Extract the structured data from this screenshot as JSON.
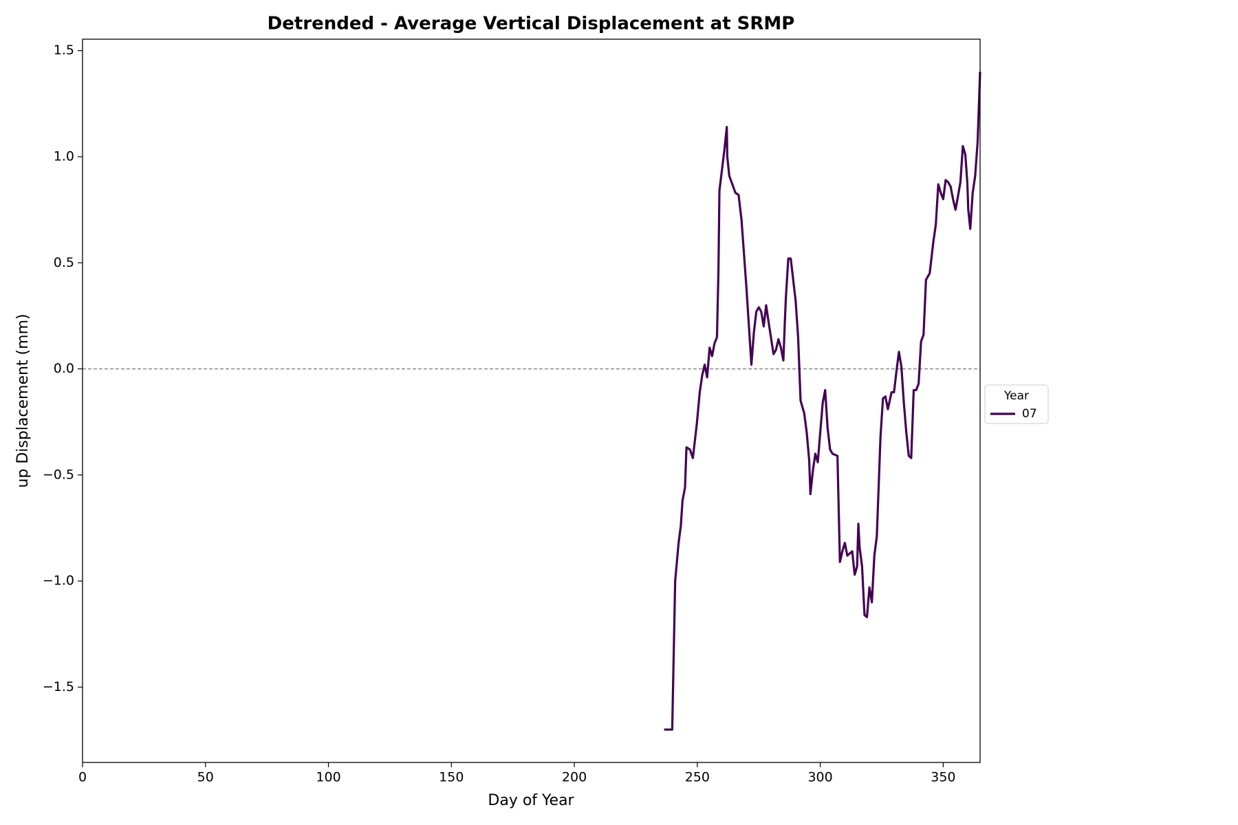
{
  "chart_data": {
    "type": "line",
    "title": "Detrended - Average Vertical Displacement at SRMP",
    "x_label": "Day of Year",
    "y_label": "up Displacement  (mm)",
    "x": [
      236.5,
      239.8,
      241,
      242.4,
      243.3,
      244,
      245,
      245.6,
      247,
      248.2,
      249.8,
      251,
      252,
      253,
      254,
      255,
      256,
      257,
      258,
      258.6,
      259,
      261,
      262,
      262.2,
      263,
      265.5,
      266.8,
      268,
      270,
      272,
      273,
      274,
      275,
      276,
      277,
      278,
      279,
      281,
      282,
      283,
      284,
      285,
      285.6,
      286,
      287,
      288,
      290,
      291,
      292,
      293.5,
      294.5,
      295.5,
      296,
      297,
      298,
      299,
      300,
      301,
      302,
      303,
      304,
      305,
      307,
      308,
      309,
      310,
      311,
      312,
      313,
      314,
      315,
      315.5,
      316,
      317,
      318,
      319,
      320,
      321,
      322,
      323,
      324.5,
      325.5,
      326.5,
      327.5,
      329,
      330,
      331,
      332,
      333,
      334,
      335,
      336,
      337,
      338,
      339,
      340,
      341,
      342,
      343,
      344.5,
      346,
      347,
      348,
      349,
      350,
      351,
      352,
      353,
      354,
      355,
      355.8,
      357,
      358,
      359,
      359.8,
      360.2,
      361,
      362,
      363,
      364,
      365
    ],
    "series": [
      {
        "name": "07",
        "color": "#440154",
        "values": [
          -1.7,
          -1.7,
          -1.0,
          -0.82,
          -0.74,
          -0.62,
          -0.56,
          -0.37,
          -0.38,
          -0.42,
          -0.26,
          -0.11,
          -0.03,
          0.02,
          -0.04,
          0.1,
          0.06,
          0.12,
          0.15,
          0.46,
          0.84,
          1.03,
          1.14,
          1.0,
          0.91,
          0.83,
          0.82,
          0.7,
          0.38,
          0.02,
          0.17,
          0.27,
          0.29,
          0.27,
          0.2,
          0.3,
          0.22,
          0.07,
          0.09,
          0.14,
          0.1,
          0.04,
          0.22,
          0.33,
          0.52,
          0.52,
          0.32,
          0.15,
          -0.15,
          -0.21,
          -0.3,
          -0.43,
          -0.59,
          -0.48,
          -0.4,
          -0.44,
          -0.3,
          -0.16,
          -0.1,
          -0.28,
          -0.38,
          -0.4,
          -0.41,
          -0.91,
          -0.86,
          -0.82,
          -0.88,
          -0.87,
          -0.86,
          -0.97,
          -0.93,
          -0.73,
          -0.84,
          -0.93,
          -1.16,
          -1.17,
          -1.03,
          -1.1,
          -0.88,
          -0.79,
          -0.32,
          -0.14,
          -0.13,
          -0.19,
          -0.11,
          -0.11,
          -0.01,
          0.08,
          0.01,
          -0.16,
          -0.3,
          -0.41,
          -0.42,
          -0.1,
          -0.1,
          -0.07,
          0.13,
          0.16,
          0.42,
          0.45,
          0.6,
          0.68,
          0.87,
          0.83,
          0.8,
          0.89,
          0.88,
          0.86,
          0.8,
          0.75,
          0.8,
          0.88,
          1.05,
          1.01,
          0.88,
          0.75,
          0.66,
          0.83,
          0.91,
          1.07,
          1.4
        ]
      }
    ],
    "legend_title": "Year",
    "legend_position": "right",
    "reference_line": 0,
    "xlim": [
      0,
      365
    ],
    "xticks": [
      0,
      50,
      100,
      150,
      200,
      250,
      300,
      350
    ],
    "ylim": [
      -1.855,
      1.554
    ],
    "yticks": [
      {
        "value": -1.5,
        "label": "−1.5"
      },
      {
        "value": -1.0,
        "label": "−1.0"
      },
      {
        "value": -0.5,
        "label": "−0.5"
      },
      {
        "value": 0.0,
        "label": "0.0"
      },
      0.5,
      {
        "value": 1.0,
        "label": "1.0"
      },
      1.5
    ]
  }
}
